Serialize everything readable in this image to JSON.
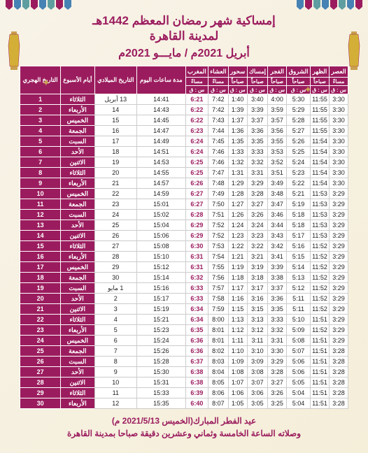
{
  "header": {
    "title1": "إمساكية شهر رمضان المعظم 1442هـ",
    "title2": "لمدينة القاهرة",
    "subtitle": "أبريل 2021م / مايـــو 2021م"
  },
  "columns_top": [
    "العصر",
    "الظهر",
    "الشروق",
    "الفجر",
    "إمساك",
    "سحور",
    "العشاء",
    "المغرب",
    "مدة ساعات اليوم",
    "التاريخ الميلادي",
    "أيام الأسبوع",
    "التاريخ الهجري"
  ],
  "columns_sub": [
    "مساءً",
    "صباحاً",
    "صباحاً",
    "صباحاً",
    "صباحاً",
    "صباحاً",
    "مساءً",
    "مساءً",
    "",
    "",
    "",
    ""
  ],
  "columns_sub2": [
    "س : ق",
    "س : ق",
    "س : ق",
    "س : ق",
    "س : ق",
    "س : ق",
    "س : ق",
    "س : ق",
    "س : ق",
    "",
    "",
    ""
  ],
  "rows": [
    [
      "3:30",
      "11:55",
      "5:30",
      "4:00",
      "3:40",
      "1:40",
      "7:42",
      "6:21",
      "14:41",
      "13 أبريل",
      "الثلاثاء",
      "1"
    ],
    [
      "3:30",
      "11:55",
      "5:29",
      "3:59",
      "3:39",
      "1:39",
      "7:42",
      "6:22",
      "14:43",
      "14",
      "الأربعاء",
      "2"
    ],
    [
      "3:30",
      "11:55",
      "5:28",
      "3:57",
      "3:37",
      "1:37",
      "7:43",
      "6:22",
      "14:45",
      "15",
      "الخميس",
      "3"
    ],
    [
      "3:30",
      "11:55",
      "5:27",
      "3:56",
      "3:36",
      "1:36",
      "7:44",
      "6:23",
      "14:47",
      "16",
      "الجمعة",
      "4"
    ],
    [
      "3:30",
      "11:54",
      "5:26",
      "3:55",
      "3:35",
      "1:35",
      "7:45",
      "6:24",
      "14:49",
      "17",
      "السبت",
      "5"
    ],
    [
      "3:30",
      "11:54",
      "5:25",
      "3:53",
      "3:33",
      "1:33",
      "7:46",
      "6:24",
      "14:51",
      "18",
      "الأحد",
      "6"
    ],
    [
      "3:30",
      "11:54",
      "5:24",
      "3:52",
      "3:32",
      "1:32",
      "7:46",
      "6:25",
      "14:53",
      "19",
      "الاثنين",
      "7"
    ],
    [
      "3:30",
      "11:54",
      "5:23",
      "3:51",
      "3:31",
      "1:31",
      "7:47",
      "6:25",
      "14:55",
      "20",
      "الثلاثاء",
      "8"
    ],
    [
      "3:30",
      "11:54",
      "5:22",
      "3:49",
      "3:29",
      "1:29",
      "7:48",
      "6:26",
      "14:57",
      "21",
      "الأربعاء",
      "9"
    ],
    [
      "3:29",
      "11:53",
      "5:21",
      "3:48",
      "3:28",
      "1:28",
      "7:49",
      "6:27",
      "14:59",
      "22",
      "الخميس",
      "10"
    ],
    [
      "3:29",
      "11:53",
      "5:19",
      "3:47",
      "3:27",
      "1:27",
      "7:50",
      "6:27",
      "15:01",
      "23",
      "الجمعة",
      "11"
    ],
    [
      "3:29",
      "11:53",
      "5:18",
      "3:46",
      "3:26",
      "1:26",
      "7:51",
      "6:28",
      "15:02",
      "24",
      "السبت",
      "12"
    ],
    [
      "3:29",
      "11:53",
      "5:18",
      "3:44",
      "3:24",
      "1:24",
      "7:52",
      "6:29",
      "15:04",
      "25",
      "الأحد",
      "13"
    ],
    [
      "3:29",
      "11:53",
      "5:17",
      "3:43",
      "3:23",
      "1:23",
      "7:52",
      "6:29",
      "15:06",
      "26",
      "الاثنين",
      "14"
    ],
    [
      "3:29",
      "11:52",
      "5:16",
      "3:42",
      "3:22",
      "1:22",
      "7:53",
      "6:30",
      "15:08",
      "27",
      "الثلاثاء",
      "15"
    ],
    [
      "3:29",
      "11:52",
      "5:15",
      "3:41",
      "3:21",
      "1:21",
      "7:54",
      "6:31",
      "15:10",
      "28",
      "الأربعاء",
      "16"
    ],
    [
      "3:29",
      "11:52",
      "5:14",
      "3:39",
      "3:19",
      "1:19",
      "7:55",
      "6:31",
      "15:12",
      "29",
      "الخميس",
      "17"
    ],
    [
      "3:29",
      "11:52",
      "5:13",
      "3:38",
      "3:18",
      "1:18",
      "7:56",
      "6:32",
      "15:14",
      "30",
      "الجمعة",
      "18"
    ],
    [
      "3:29",
      "11:52",
      "5:12",
      "3:37",
      "3:17",
      "1:17",
      "7:57",
      "6:33",
      "15:16",
      "1 مايو",
      "السبت",
      "19"
    ],
    [
      "3:29",
      "11:52",
      "5:11",
      "3:36",
      "3:16",
      "1:16",
      "7:58",
      "6:33",
      "15:17",
      "2",
      "الأحد",
      "20"
    ],
    [
      "3:29",
      "11:52",
      "5:11",
      "3:35",
      "3:15",
      "1:15",
      "7:59",
      "6:34",
      "15:19",
      "3",
      "الاثنين",
      "21"
    ],
    [
      "3:29",
      "11:51",
      "5:10",
      "3:33",
      "3:13",
      "1:13",
      "8:00",
      "6:34",
      "15:21",
      "4",
      "الثلاثاء",
      "22"
    ],
    [
      "3:29",
      "11:52",
      "5:09",
      "3:32",
      "3:12",
      "1:12",
      "8:01",
      "6:35",
      "15:23",
      "5",
      "الأربعاء",
      "23"
    ],
    [
      "3:29",
      "11:51",
      "5:08",
      "3:31",
      "3:11",
      "1:11",
      "8:01",
      "6:36",
      "15:24",
      "6",
      "الخميس",
      "24"
    ],
    [
      "3:28",
      "11:51",
      "5:07",
      "3:30",
      "3:10",
      "1:10",
      "8:02",
      "6:36",
      "15:26",
      "7",
      "الجمعة",
      "25"
    ],
    [
      "3:28",
      "11:51",
      "5:06",
      "3:29",
      "3:09",
      "1:09",
      "8:03",
      "6:37",
      "15:28",
      "8",
      "السبت",
      "26"
    ],
    [
      "3:28",
      "11:51",
      "5:06",
      "3:28",
      "3:08",
      "1:08",
      "8:04",
      "6:38",
      "15:30",
      "9",
      "الأحد",
      "27"
    ],
    [
      "3:28",
      "11:51",
      "5:05",
      "3:27",
      "3:07",
      "1:07",
      "8:05",
      "6:38",
      "15:31",
      "10",
      "الاثنين",
      "28"
    ],
    [
      "3:28",
      "11:51",
      "5:04",
      "3:26",
      "3:06",
      "1:06",
      "8:06",
      "6:39",
      "15:33",
      "11",
      "الثلاثاء",
      "29"
    ],
    [
      "3:28",
      "11:51",
      "5:04",
      "3:25",
      "3:05",
      "1:05",
      "8:07",
      "6:40",
      "15:35",
      "12",
      "الأربعاء",
      "30"
    ]
  ],
  "footer": {
    "line1": "عيد الفطر المبارك(الخميس 2021/5/13 م)",
    "line2": "وصلاته الساعة الخامسة وثماني وعشرين دقيقة صباحا بمدينة القاهرة"
  },
  "colors": {
    "primary": "#9b1c5e",
    "bg": "#f8f3e8",
    "gold": "#c9a050"
  }
}
